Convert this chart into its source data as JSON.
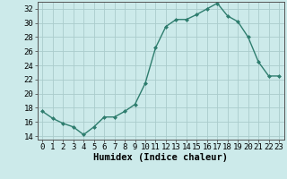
{
  "x": [
    0,
    1,
    2,
    3,
    4,
    5,
    6,
    7,
    8,
    9,
    10,
    11,
    12,
    13,
    14,
    15,
    16,
    17,
    18,
    19,
    20,
    21,
    22,
    23
  ],
  "y": [
    17.5,
    16.5,
    15.8,
    15.3,
    14.2,
    15.3,
    16.7,
    16.7,
    17.5,
    18.5,
    21.5,
    26.5,
    29.5,
    30.5,
    30.5,
    31.2,
    32.0,
    32.8,
    31.0,
    30.2,
    28.0,
    24.5,
    22.5,
    22.5
  ],
  "xlabel": "Humidex (Indice chaleur)",
  "ylim": [
    13.5,
    33.0
  ],
  "yticks": [
    14,
    16,
    18,
    20,
    22,
    24,
    26,
    28,
    30,
    32
  ],
  "xticks": [
    0,
    1,
    2,
    3,
    4,
    5,
    6,
    7,
    8,
    9,
    10,
    11,
    12,
    13,
    14,
    15,
    16,
    17,
    18,
    19,
    20,
    21,
    22,
    23
  ],
  "line_color": "#2e7d6e",
  "marker_color": "#2e7d6e",
  "bg_color": "#cceaea",
  "grid_color": "#aacccc",
  "xlabel_fontsize": 7.5,
  "tick_fontsize": 6.5
}
